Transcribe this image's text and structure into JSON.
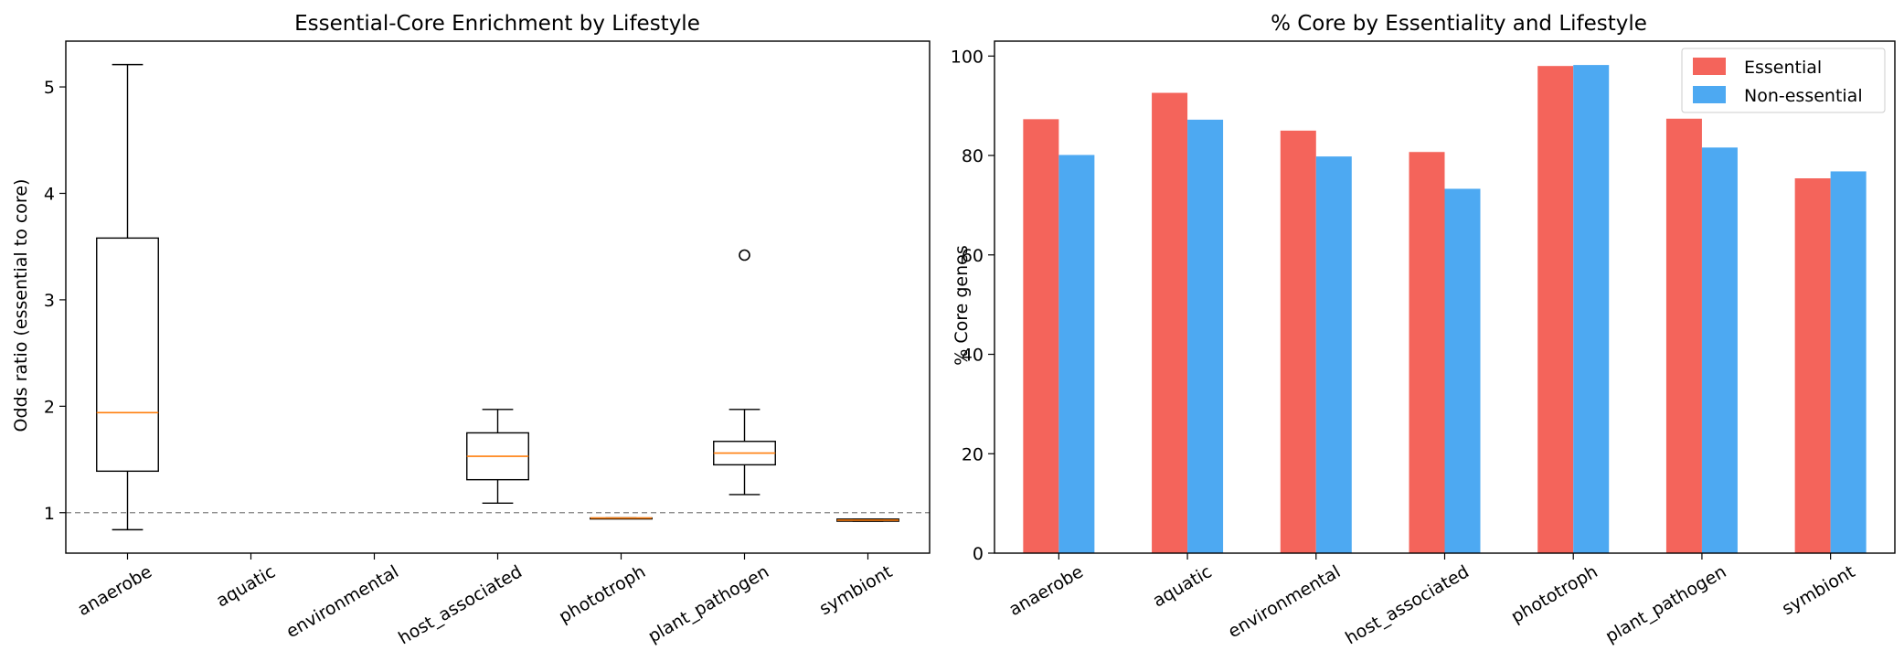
{
  "chart_data": [
    {
      "type": "box",
      "title": "Essential-Core Enrichment by Lifestyle",
      "xlabel": "",
      "ylabel": "Odds ratio (essential to core)",
      "categories": [
        "anaerobe",
        "aquatic",
        "environmental",
        "host_associated",
        "phototroph",
        "plant_pathogen",
        "symbiont"
      ],
      "yticks": [
        "1",
        "2",
        "3",
        "4",
        "5"
      ],
      "ylim": [
        0.62,
        5.43
      ],
      "reference_line": 1.0,
      "boxes": [
        {
          "category": "anaerobe",
          "whisker_low": 0.84,
          "q1": 1.39,
          "median": 1.94,
          "q3": 3.58,
          "whisker_high": 5.21,
          "outliers": []
        },
        {
          "category": "aquatic",
          "empty": true
        },
        {
          "category": "environmental",
          "empty": true
        },
        {
          "category": "host_associated",
          "whisker_low": 1.09,
          "q1": 1.31,
          "median": 1.53,
          "q3": 1.75,
          "whisker_high": 1.97,
          "outliers": []
        },
        {
          "category": "phototroph",
          "whisker_low": 0.95,
          "q1": 0.95,
          "median": 0.95,
          "q3": 0.95,
          "whisker_high": 0.95,
          "outliers": []
        },
        {
          "category": "plant_pathogen",
          "whisker_low": 1.17,
          "q1": 1.45,
          "median": 1.56,
          "q3": 1.67,
          "whisker_high": 1.97,
          "outliers": [
            3.42
          ]
        },
        {
          "category": "symbiont",
          "whisker_low": 0.92,
          "q1": 0.92,
          "median": 0.93,
          "q3": 0.94,
          "whisker_high": 0.94,
          "outliers": []
        }
      ],
      "colors": {
        "box": "#000000",
        "median": "#ff7f0e",
        "ref_line": "#808080",
        "symbiont_fill": "#c56d34"
      }
    },
    {
      "type": "bar",
      "title": "% Core by Essentiality and Lifestyle",
      "xlabel": "",
      "ylabel": "% Core genes",
      "categories": [
        "anaerobe",
        "aquatic",
        "environmental",
        "host_associated",
        "phototroph",
        "plant_pathogen",
        "symbiont"
      ],
      "yticks": [
        "0",
        "20",
        "40",
        "60",
        "80",
        "100"
      ],
      "ylim": [
        0,
        103
      ],
      "legend_position": "upper right",
      "series": [
        {
          "name": "Essential",
          "color": "#f4645b",
          "values": [
            87.3,
            92.6,
            85.0,
            80.7,
            98.0,
            87.4,
            75.4
          ]
        },
        {
          "name": "Non-essential",
          "color": "#4da9f2",
          "values": [
            80.1,
            87.2,
            79.8,
            73.3,
            98.2,
            81.6,
            76.8
          ]
        }
      ]
    }
  ]
}
